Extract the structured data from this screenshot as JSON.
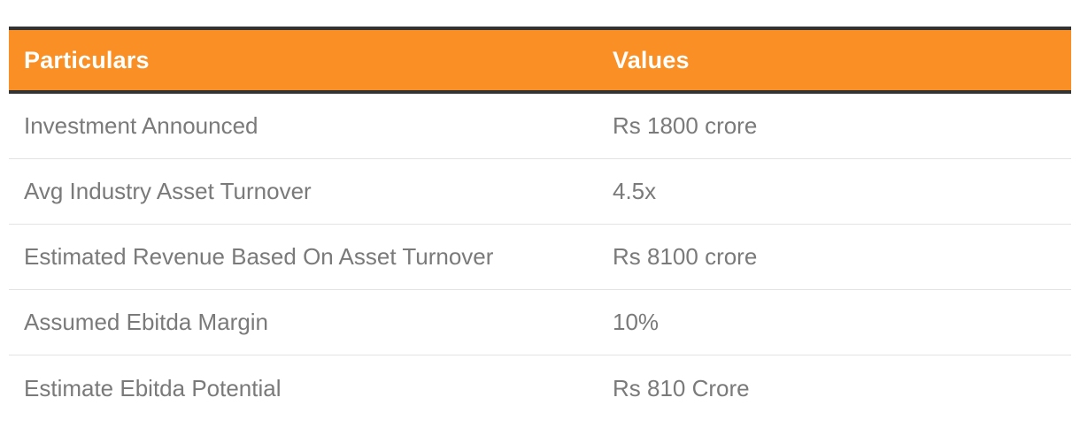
{
  "table": {
    "headers": [
      "Particulars",
      "Values"
    ],
    "rows": [
      [
        "Investment Announced",
        "Rs 1800 crore"
      ],
      [
        "Avg Industry Asset Turnover",
        "4.5x"
      ],
      [
        "Estimated Revenue Based On Asset Turnover",
        "Rs 8100 crore"
      ],
      [
        "Assumed Ebitda Margin",
        "10%"
      ],
      [
        "Estimate Ebitda Potential",
        "Rs 810 Crore"
      ]
    ]
  },
  "colors": {
    "header_bg": "#f98f25",
    "header_text": "#ffffff",
    "border_dark": "#333333",
    "cell_text": "#7a7a7a",
    "row_divider": "#e3e3e3"
  }
}
